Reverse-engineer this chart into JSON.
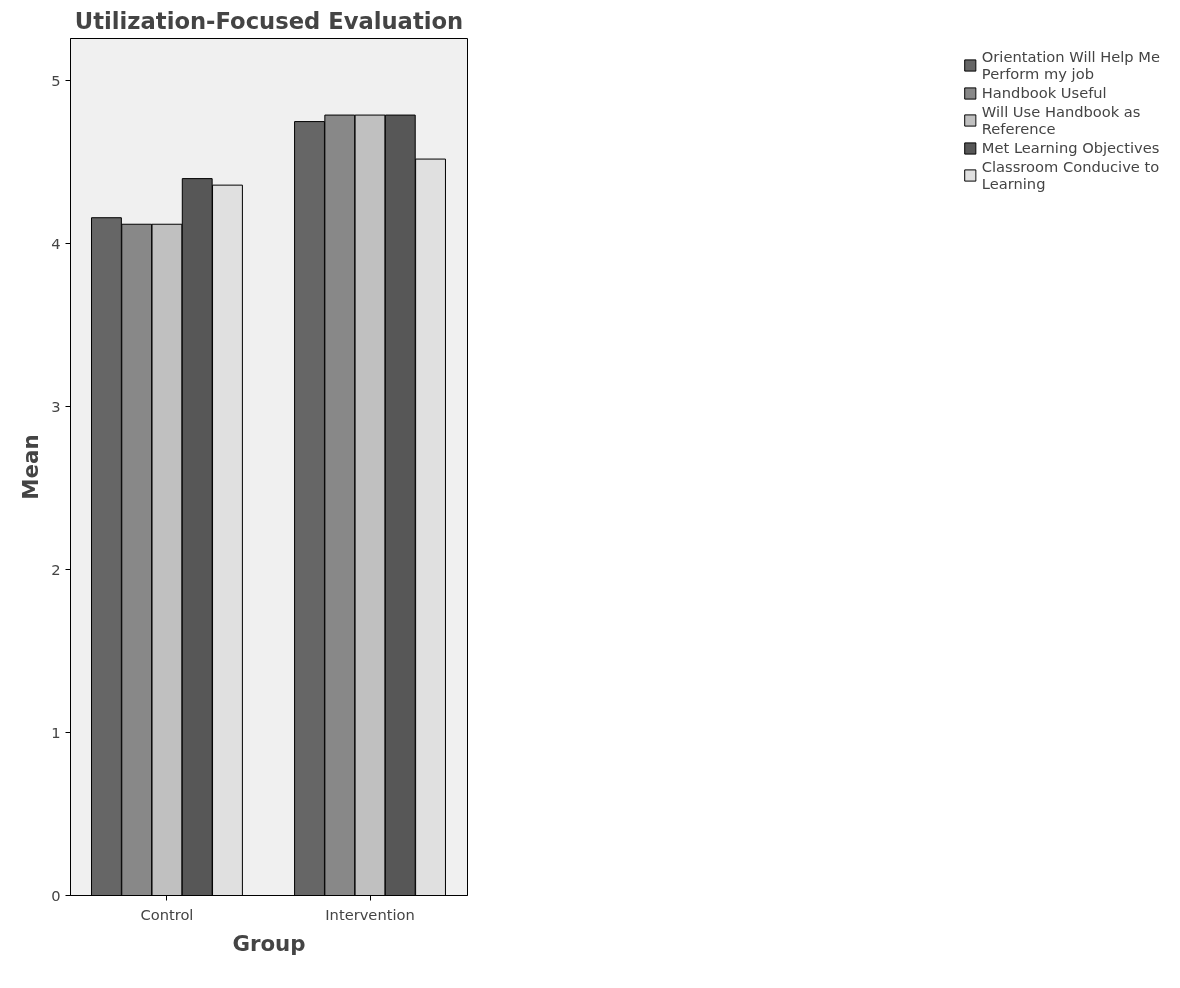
{
  "chart_data": {
    "type": "bar",
    "title": "Utilization-Focused Evaluation",
    "xlabel": "Group",
    "ylabel": "Mean",
    "categories": [
      "Control",
      "Intervention"
    ],
    "series": [
      {
        "name": "Orientation Will Help Me Perform my job",
        "color": "#666666",
        "values": [
          4.16,
          4.75
        ]
      },
      {
        "name": "Handbook Useful",
        "color": "#888888",
        "values": [
          4.12,
          4.79
        ]
      },
      {
        "name": "Will Use Handbook as Reference",
        "color": "#c0c0c0",
        "values": [
          4.12,
          4.79
        ]
      },
      {
        "name": "Met Learning Objectives",
        "color": "#575757",
        "values": [
          4.4,
          4.79
        ]
      },
      {
        "name": "Classroom Conducive to Learning",
        "color": "#e0e0e0",
        "values": [
          4.36,
          4.52
        ]
      }
    ],
    "ylim": [
      0,
      5.26
    ],
    "yticks": [
      0,
      1,
      2,
      3,
      4,
      5
    ],
    "grid": false,
    "legend": "top right"
  }
}
